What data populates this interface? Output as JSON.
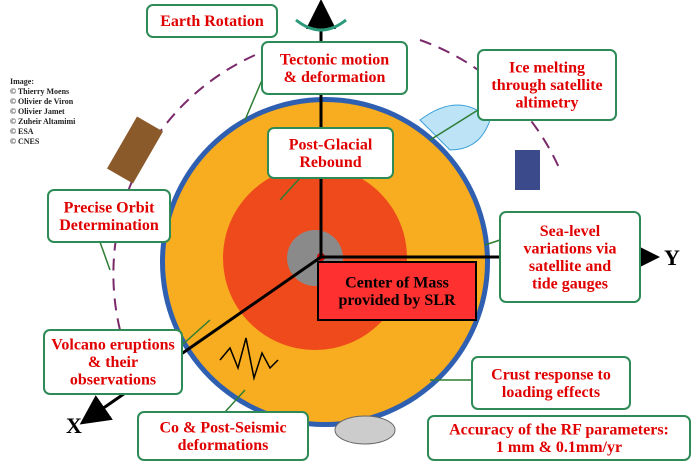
{
  "credits": [
    "Image:",
    "© Thierry Moens",
    "© Olivier de Viron",
    "© Olivier Jamet",
    "© Zuheir Altamimi",
    "© ESA",
    "© CNES"
  ],
  "boxes": [
    {
      "lines": [
        "Earth Rotation"
      ]
    },
    {
      "lines": [
        "Tectonic motion",
        "& deformation"
      ]
    },
    {
      "lines": [
        "Ice melting",
        "through satellite",
        "altimetry"
      ]
    },
    {
      "lines": [
        "Post-Glacial",
        "Rebound"
      ]
    },
    {
      "lines": [
        "Precise Orbit",
        "Determination"
      ]
    },
    {
      "lines": [
        "Sea-level",
        "variations via",
        "satellite and",
        "tide gauges"
      ]
    },
    {
      "lines": [
        "Center of Mass",
        "provided by SLR"
      ]
    },
    {
      "lines": [
        "Volcano eruptions",
        "& their",
        "observations"
      ]
    },
    {
      "lines": [
        "Crust response to",
        "loading effects"
      ]
    },
    {
      "lines": [
        "Co & Post-Seismic",
        "deformations"
      ]
    },
    {
      "lines": [
        "Accuracy of the RF parameters:",
        "1 mm & 0.1mm/yr"
      ]
    }
  ],
  "axes": {
    "y": "Y",
    "x": "X"
  }
}
